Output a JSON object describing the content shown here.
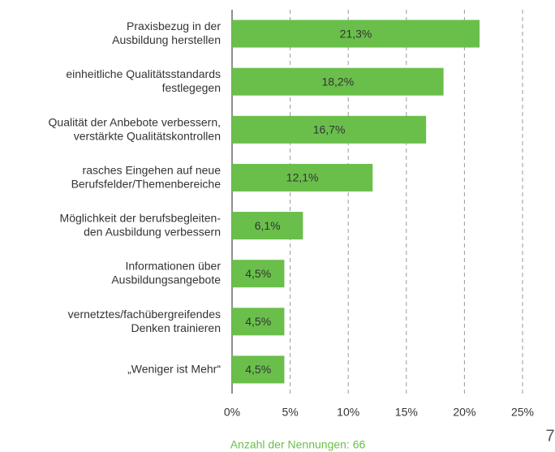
{
  "chart_data": {
    "type": "bar",
    "orientation": "horizontal",
    "categories": [
      "Praxisbezug in der\nAusbildung herstellen",
      "einheitliche Qualitätsstandards\nfestlegegen",
      "Qualität der Anbebote verbessern,\nverstärkte Qualitätskontrollen",
      "rasches Eingehen auf neue\nBerufsfelder/Themenbereiche",
      "Möglichkeit der berufsbegleiten-\nden Ausbildung verbessern",
      "Informationen über\nAusbildungsangebote",
      "vernetztes/fachübergreifendes\nDenken trainieren",
      "„Weniger ist Mehr“"
    ],
    "values": [
      21.3,
      18.2,
      16.7,
      12.1,
      6.1,
      4.5,
      4.5,
      4.5
    ],
    "value_labels": [
      "21,3%",
      "18,2%",
      "16,7%",
      "12,1%",
      "6,1%",
      "4,5%",
      "4,5%",
      "4,5%"
    ],
    "color": "#6abf4b",
    "xlim": [
      0,
      25
    ],
    "xticks": [
      {
        "value": 0,
        "label": "0%"
      },
      {
        "value": 5,
        "label": "5%"
      },
      {
        "value": 10,
        "label": "10%"
      },
      {
        "value": 15,
        "label": "15%"
      },
      {
        "value": 20,
        "label": "20%"
      },
      {
        "value": 25,
        "label": "25%"
      }
    ],
    "grid": true,
    "note": "Anzahl der Nennungen: 66",
    "page_number": "7"
  }
}
